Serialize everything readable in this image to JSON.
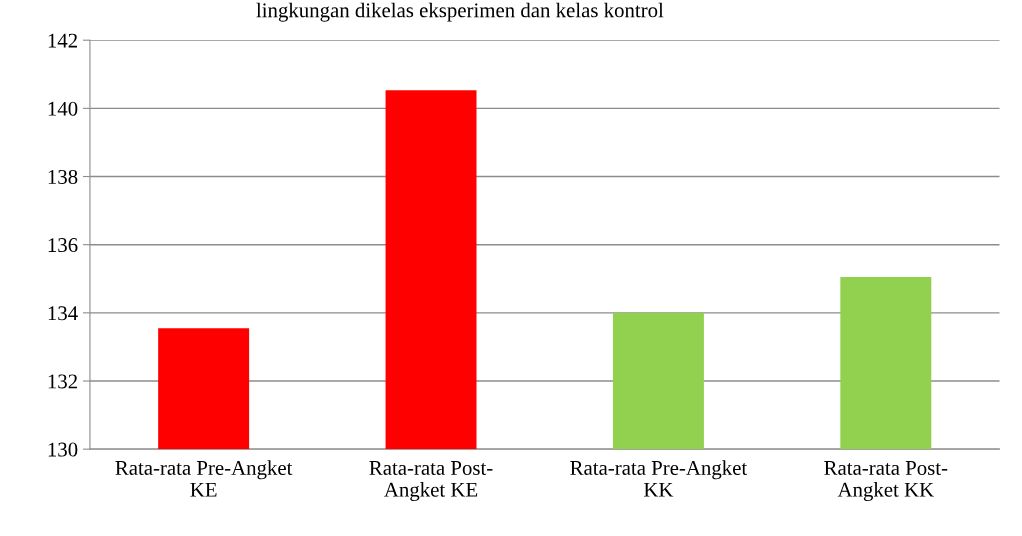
{
  "chart_data": {
    "type": "bar",
    "title": "lingkungan dikelas eksperimen dan kelas kontrol",
    "categories": [
      "Rata-rata Pre-Angket\nKE",
      "Rata-rata Post-\nAngket KE",
      "Rata-rata Pre-Angket\nKK",
      "Rata-rata Post-\nAngket KK"
    ],
    "values": [
      133.55,
      140.53,
      134.0,
      135.05
    ],
    "colors": [
      "#ff0000",
      "#ff0000",
      "#92d050",
      "#92d050"
    ],
    "ylim": [
      130,
      142
    ],
    "yticks": [
      130,
      132,
      134,
      136,
      138,
      140,
      142
    ],
    "grid": "y"
  }
}
